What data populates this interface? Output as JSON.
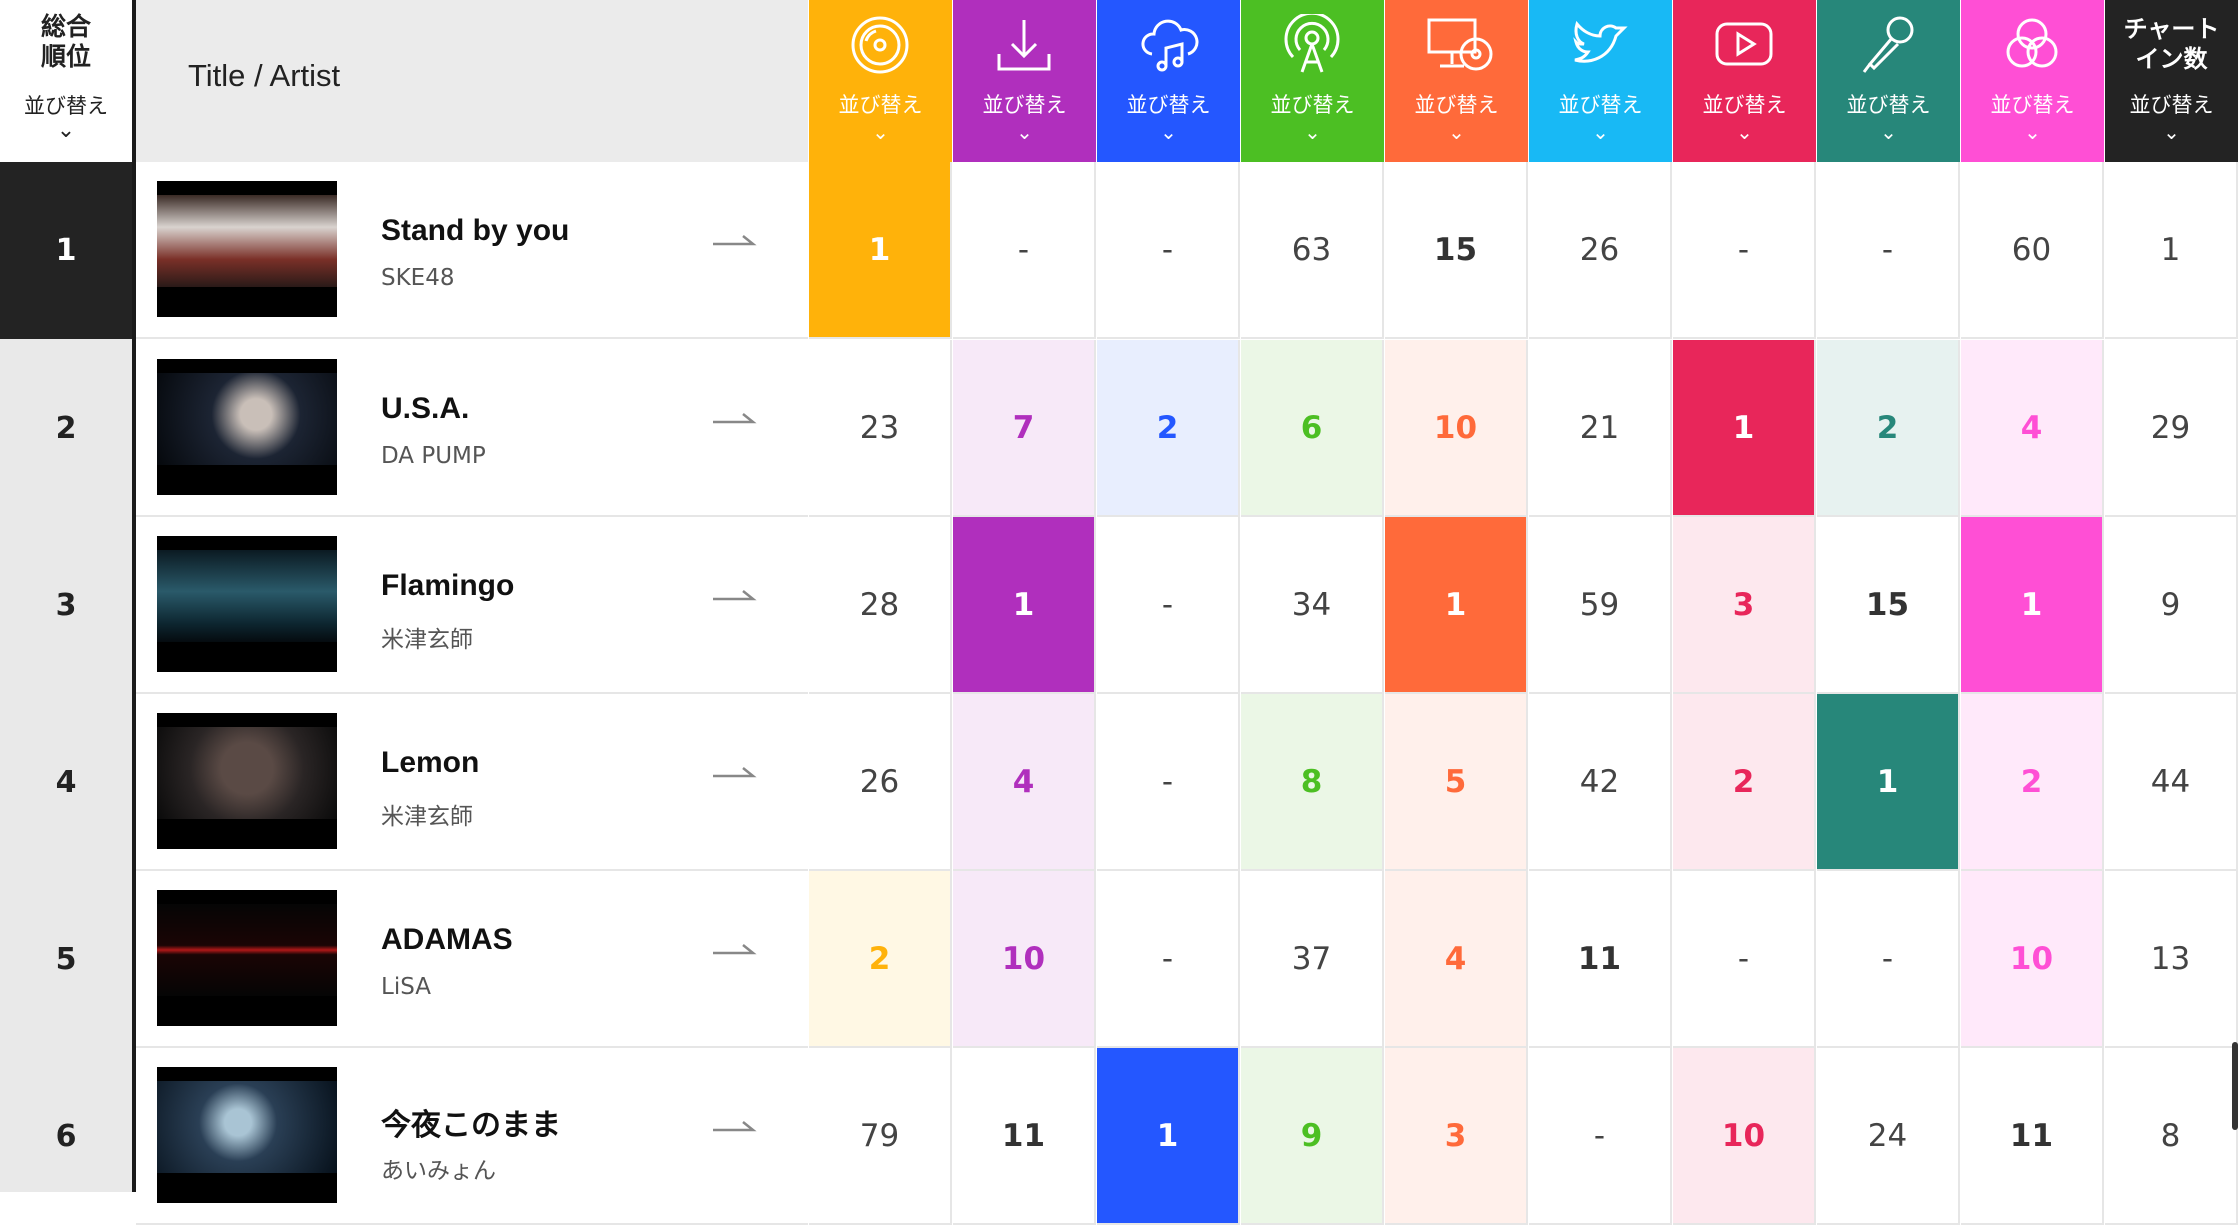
{
  "header": {
    "rank_title_1": "総合",
    "rank_title_2": "順位",
    "sort_label": "並び替え",
    "chevron": "⌄",
    "title_artist": "Title / Artist",
    "chartin_1": "チャート",
    "chartin_2": "イン数"
  },
  "columns": [
    {
      "icon": "cd-disc-icon",
      "color": "#ffb20a",
      "light": "#fff8e4",
      "sort": "並び替え"
    },
    {
      "icon": "download-icon",
      "color": "#b02fbd",
      "light": "#f7e9f8",
      "sort": "並び替え"
    },
    {
      "icon": "cloud-music-icon",
      "color": "#2457ff",
      "light": "#e8eefe",
      "sort": "並び替え"
    },
    {
      "icon": "radio-antenna-icon",
      "color": "#4cbf23",
      "light": "#ebf7e6",
      "sort": "並び替え"
    },
    {
      "icon": "pc-cd-icon",
      "color": "#ff6a3a",
      "light": "#fff0eb",
      "sort": "並び替え"
    },
    {
      "icon": "twitter-bird-icon",
      "color": "#18b9f5",
      "light": "#e6f6fe",
      "sort": "並び替え"
    },
    {
      "icon": "youtube-play-icon",
      "color": "#e8265a",
      "light": "#fde8ee",
      "sort": "並び替え"
    },
    {
      "icon": "microphone-icon",
      "color": "#27877a",
      "light": "#e7f2f0",
      "sort": "並び替え"
    },
    {
      "icon": "three-circles-icon",
      "color": "#ff4fd5",
      "light": "#ffe9fa",
      "sort": "並び替え"
    },
    {
      "icon": "",
      "color": "#232323",
      "light": "#ffffff",
      "sort": "並び替え"
    }
  ],
  "rows": [
    {
      "rank": "1",
      "title": "Stand by you",
      "artist": "SKE48",
      "trend": "→",
      "thumb": "thumb-ske48",
      "cells": [
        "1",
        "-",
        "-",
        "63",
        "15",
        "26",
        "-",
        "-",
        "60",
        "1"
      ]
    },
    {
      "rank": "2",
      "title": "U.S.A.",
      "artist": "DA PUMP",
      "trend": "→",
      "thumb": "thumb-dapump",
      "cells": [
        "23",
        "7",
        "2",
        "6",
        "10",
        "21",
        "1",
        "2",
        "4",
        "29"
      ]
    },
    {
      "rank": "3",
      "title": "Flamingo",
      "artist": "米津玄師",
      "trend": "→",
      "thumb": "thumb-flamingo",
      "cells": [
        "28",
        "1",
        "-",
        "34",
        "1",
        "59",
        "3",
        "15",
        "1",
        "9"
      ]
    },
    {
      "rank": "4",
      "title": "Lemon",
      "artist": "米津玄師",
      "trend": "→",
      "thumb": "thumb-lemon",
      "cells": [
        "26",
        "4",
        "-",
        "8",
        "5",
        "42",
        "2",
        "1",
        "2",
        "44"
      ]
    },
    {
      "rank": "5",
      "title": "ADAMAS",
      "artist": "LiSA",
      "trend": "→",
      "thumb": "thumb-adamas",
      "cells": [
        "2",
        "10",
        "-",
        "37",
        "4",
        "11",
        "-",
        "-",
        "10",
        "13"
      ]
    },
    {
      "rank": "6",
      "title": "今夜このまま",
      "artist": "あいみょん",
      "trend": "→",
      "thumb": "thumb-aimyon",
      "cells": [
        "79",
        "11",
        "1",
        "9",
        "3",
        "-",
        "10",
        "24",
        "11",
        "8"
      ]
    }
  ]
}
